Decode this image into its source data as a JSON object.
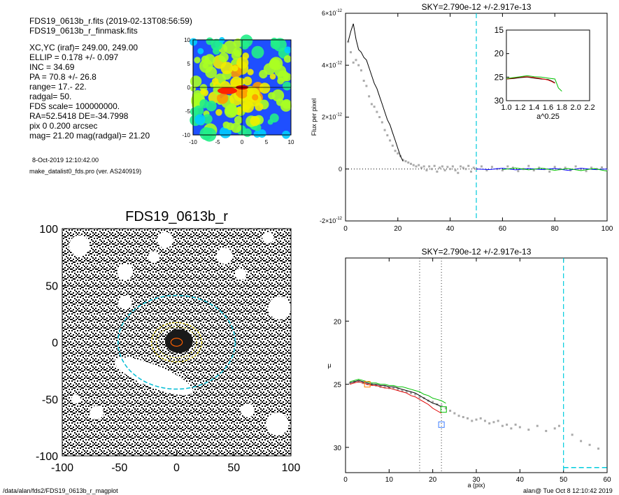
{
  "header": {
    "lines": [
      "FDS19_0613b_r.fits  (2019-02-13T08:56:59)",
      "FDS19_0613b_r_finmask.fits"
    ],
    "params": [
      "XC,YC (iraf)=   249.00, 249.00",
      "ELLIP = 0.178 +/- 0.097",
      "INC    = 34.69",
      "PA      =  70.8 +/-  26.8",
      "range=   17.-   22.",
      "radgal=   50.",
      "FDS scale=  100000000.",
      "RA=52.5418   DE=-34.7998",
      "pix 0 0.200 arcsec",
      "mag=  21.20  mag(radgal)=  21.20"
    ],
    "date": "8-Oct-2019 12:10:42.00",
    "program": "make_datalist0_fds.pro (ver. AS240919)"
  },
  "footer": {
    "left": "/data/alan/fds2/FDS19_0613b_r_magplot",
    "right": "alan@  Tue Oct  8 12:10:42 2019"
  },
  "chart_data": [
    {
      "type": "heatmap",
      "panel": "contour-map",
      "x_ticks": [
        "-10",
        "-5",
        "0",
        "5",
        "10"
      ],
      "y_ticks": [
        "-10",
        "-5",
        "0",
        "5",
        "10"
      ],
      "xlim": [
        -10,
        10
      ],
      "ylim": [
        -10,
        10
      ]
    },
    {
      "type": "scatter",
      "panel": "mask-image",
      "title": "FDS19_0613b_r",
      "x_ticks": [
        "-100",
        "-50",
        "0",
        "50",
        "100"
      ],
      "y_ticks": [
        "-100",
        "-50",
        "0",
        "50",
        "100"
      ],
      "xlim": [
        -100,
        100
      ],
      "ylim": [
        -100,
        100
      ],
      "ellipses": [
        {
          "name": "outer",
          "a": 50,
          "color": "#00bcd4"
        },
        {
          "name": "inner",
          "a": 22,
          "color": "#d4c000"
        },
        {
          "name": "core",
          "a": 5,
          "color": "#ff6000"
        }
      ]
    },
    {
      "type": "line",
      "panel": "flux-profile",
      "title": "SKY=2.790e-12 +/-2.917e-13",
      "ylabel": "Flux per pixel",
      "xlim": [
        0,
        100
      ],
      "ylim": [
        -2e-12,
        6e-12
      ],
      "x_ticks": [
        "0",
        "20",
        "40",
        "60",
        "80",
        "100"
      ],
      "y_ticks": [
        {
          "base": "-2×10",
          "exp": "-12",
          "v": -2e-12
        },
        {
          "base": "0",
          "exp": "",
          "v": 0
        },
        {
          "base": "2×10",
          "exp": "-12",
          "v": 2e-12
        },
        {
          "base": "4×10",
          "exp": "-12",
          "v": 4e-12
        },
        {
          "base": "6×10",
          "exp": "-12",
          "v": 6e-12
        }
      ],
      "vline_x": 50,
      "series": [
        {
          "name": "",
          "color": "#000000",
          "x": [
            1,
            2,
            3,
            4,
            5,
            6,
            7,
            8,
            9,
            10,
            11,
            12,
            13,
            14,
            15,
            16,
            17,
            18,
            19,
            20,
            21,
            22
          ],
          "y": [
            4.9e-12,
            5.3e-12,
            5.6e-12,
            5e-12,
            4.6e-12,
            4.5e-12,
            4.3e-12,
            4.2e-12,
            3.9e-12,
            3.6e-12,
            3.3e-12,
            3.1e-12,
            2.8e-12,
            2.5e-12,
            2.2e-12,
            1.9e-12,
            1.7e-12,
            1.4e-12,
            1.1e-12,
            8e-13,
            5e-13,
            3e-13
          ]
        },
        {
          "name": "",
          "color": "#0000ff",
          "x": [
            50,
            55,
            60,
            65,
            70,
            75,
            80,
            85,
            90,
            95,
            100
          ],
          "y": [
            0,
            -2e-14,
            3e-14,
            -3e-14,
            2e-14,
            -2e-14,
            2e-14,
            -5e-14,
            3e-14,
            -2e-14,
            0
          ]
        },
        {
          "name": "",
          "color": "#00c000",
          "x": [
            60,
            65,
            70,
            75,
            80,
            85,
            90,
            95,
            100
          ],
          "y": [
            -2e-14,
            4e-14,
            -3e-14,
            3e-14,
            -5e-14,
            2e-14,
            -6e-14,
            2e-14,
            -8e-14
          ]
        }
      ],
      "points_x": [
        1,
        2,
        3,
        4,
        5,
        6,
        7,
        8,
        9,
        10,
        11,
        12,
        13,
        14,
        15,
        16,
        17,
        18,
        19,
        20,
        21,
        22,
        23,
        24,
        25,
        26,
        27,
        28,
        29,
        30,
        31,
        32,
        33,
        34,
        35,
        36,
        37,
        38,
        39,
        40,
        41,
        42,
        43,
        44,
        45,
        46,
        47,
        48,
        49,
        50,
        52,
        54,
        56,
        58,
        60,
        62,
        64,
        66,
        68,
        70,
        72,
        74,
        76,
        78,
        80,
        82,
        84,
        86,
        88,
        90,
        92,
        94,
        96,
        98,
        100
      ],
      "points_y": [
        4.9e-12,
        4.5e-12,
        4.1e-12,
        4.2e-12,
        4e-12,
        3.8e-12,
        3.4e-12,
        3.2e-12,
        2.8e-12,
        2.5e-12,
        2.4e-12,
        2.2e-12,
        2e-12,
        1.8e-12,
        1.5e-12,
        1.3e-12,
        1.1e-12,
        9e-13,
        7e-13,
        6e-13,
        5e-13,
        3.5e-13,
        3e-13,
        2.5e-13,
        2e-13,
        1.5e-13,
        1e-13,
        1.5e-13,
        5e-14,
        1e-13,
        -5e-14,
        1e-13,
        0.0,
        1.2e-13,
        -1e-13,
        5e-14,
        1e-13,
        -5e-14,
        8e-14,
        0.0,
        1e-13,
        -5e-14,
        -1.5e-13,
        1e-13,
        5e-14,
        0.0,
        1.2e-13,
        -1e-13,
        5e-14,
        0.0,
        1e-13,
        -5e-14,
        8e-14,
        0.0,
        -5e-14,
        1e-13,
        5e-14,
        -8e-14,
        0.0,
        1.2e-13,
        -5e-14,
        5e-14,
        0.0,
        -1e-13,
        8e-14,
        0.0,
        5e-14,
        -5e-14,
        1e-13,
        0.0,
        -8e-14,
        5e-14,
        0.0,
        6e-14,
        -4e-14
      ]
    },
    {
      "type": "line",
      "panel": "inset",
      "xlabel": "a^0.25",
      "xlim": [
        1.0,
        2.2
      ],
      "ylim": [
        30,
        15
      ],
      "x_ticks": [
        "1.0",
        "1.2",
        "1.4",
        "1.6",
        "1.8",
        "2.0",
        "2.2"
      ],
      "y_ticks": [
        "15",
        "20",
        "25",
        "30"
      ],
      "series": [
        {
          "name": "",
          "color": "#000000",
          "x": [
            1.0,
            1.1,
            1.2,
            1.3,
            1.4,
            1.5,
            1.6,
            1.65,
            1.7
          ],
          "y": [
            25.4,
            25.3,
            25.1,
            25.0,
            25.2,
            25.4,
            25.5,
            25.8,
            26.2
          ]
        },
        {
          "name": "",
          "color": "#e00000",
          "x": [
            1.0,
            1.1,
            1.2,
            1.3,
            1.4,
            1.5,
            1.6,
            1.65,
            1.7
          ],
          "y": [
            25.4,
            25.2,
            25.0,
            24.9,
            25.1,
            25.3,
            25.6,
            25.9,
            26.3
          ]
        },
        {
          "name": "",
          "color": "#00c000",
          "x": [
            1.0,
            1.1,
            1.2,
            1.3,
            1.4,
            1.5,
            1.6,
            1.7,
            1.75,
            1.8
          ],
          "y": [
            25.3,
            25.1,
            24.9,
            24.7,
            24.9,
            25.0,
            25.2,
            25.4,
            27.3,
            28.0
          ]
        }
      ]
    },
    {
      "type": "line",
      "panel": "mu-profile",
      "title": "SKY=2.790e-12 +/-2.917e-13",
      "xlabel": "a (pix)",
      "ylabel": "μ",
      "xlim": [
        0,
        60
      ],
      "ylim": [
        32,
        15
      ],
      "x_ticks": [
        "0",
        "10",
        "20",
        "30",
        "40",
        "50",
        "60"
      ],
      "y_ticks": [
        "20",
        "25",
        "30"
      ],
      "vlines_dotted": [
        17,
        22
      ],
      "vline_dashed": 50,
      "series": [
        {
          "name": "",
          "color": "#000000",
          "x": [
            1,
            2,
            3,
            4,
            5,
            6,
            7,
            8,
            9,
            10,
            11,
            12,
            13,
            14,
            15,
            16,
            17,
            18,
            19,
            20,
            21,
            22
          ],
          "y": [
            24.9,
            24.8,
            24.7,
            24.8,
            24.9,
            25.0,
            25.0,
            25.1,
            25.1,
            25.2,
            25.2,
            25.3,
            25.4,
            25.5,
            25.6,
            25.7,
            25.9,
            26.1,
            26.3,
            26.5,
            26.6,
            26.8
          ]
        },
        {
          "name": "",
          "color": "#e00000",
          "x": [
            1,
            2,
            3,
            4,
            5,
            6,
            7,
            8,
            9,
            10,
            11,
            12,
            13,
            14,
            15,
            16,
            17,
            18,
            19,
            20,
            21,
            22
          ],
          "y": [
            25.0,
            24.9,
            24.8,
            24.9,
            25.0,
            25.1,
            25.1,
            25.2,
            25.3,
            25.3,
            25.4,
            25.5,
            25.6,
            25.7,
            25.9,
            26.0,
            26.2,
            26.4,
            26.6,
            26.9,
            27.1,
            27.3
          ]
        },
        {
          "name": "",
          "color": "#00c000",
          "x": [
            1,
            2,
            3,
            4,
            5,
            6,
            7,
            8,
            9,
            10,
            11,
            12,
            13,
            14,
            15,
            16,
            17,
            18,
            19,
            20,
            21,
            22,
            23
          ],
          "y": [
            24.8,
            24.7,
            24.6,
            24.7,
            24.8,
            24.9,
            24.9,
            25.0,
            25.0,
            25.1,
            25.1,
            25.2,
            25.2,
            25.3,
            25.4,
            25.5,
            25.6,
            25.8,
            25.9,
            26.1,
            26.2,
            26.3,
            26.5
          ]
        }
      ],
      "points_x": [
        1,
        2,
        3,
        4,
        5,
        6,
        7,
        8,
        9,
        10,
        11,
        12,
        13,
        14,
        15,
        16,
        17,
        18,
        19,
        20,
        21,
        22,
        23,
        24,
        25,
        26,
        27,
        28,
        29,
        30,
        31,
        32,
        33,
        34,
        35,
        36,
        37,
        38,
        39,
        40,
        42,
        44,
        46,
        48,
        49,
        52,
        54,
        56,
        58
      ],
      "points_y": [
        24.9,
        24.8,
        24.8,
        24.9,
        25.0,
        25.0,
        25.1,
        25.2,
        25.2,
        25.3,
        25.3,
        25.4,
        25.5,
        25.6,
        25.7,
        25.8,
        26.0,
        26.1,
        26.3,
        26.4,
        26.6,
        26.7,
        26.9,
        27.1,
        27.3,
        27.5,
        27.6,
        27.7,
        27.9,
        27.8,
        27.7,
        27.9,
        28.1,
        28.0,
        27.9,
        28.3,
        28.2,
        28.5,
        28.2,
        28.4,
        28.6,
        28.3,
        28.7,
        28.5,
        28.3,
        29.0,
        29.5,
        29.8,
        30.1
      ],
      "markers": [
        {
          "x": 5,
          "y": 25.0,
          "color": "#ff8000"
        },
        {
          "x": 22,
          "y": 28.2,
          "color": "#4080ff"
        },
        {
          "x": 22.5,
          "y": 27.0,
          "color": "#00c000"
        }
      ],
      "sky_x": [
        50,
        60
      ],
      "sky_y": 31.6
    }
  ]
}
